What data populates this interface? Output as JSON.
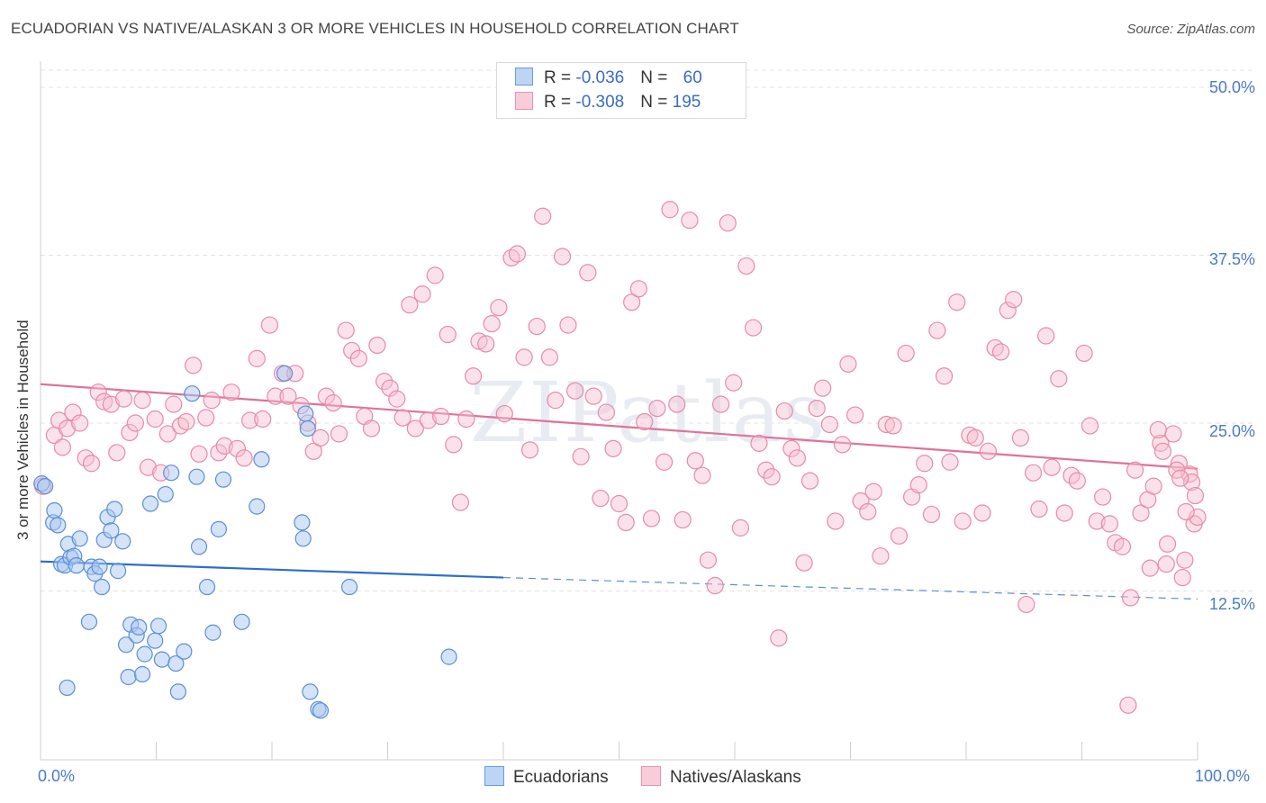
{
  "title": "ECUADORIAN VS NATIVE/ALASKAN 3 OR MORE VEHICLES IN HOUSEHOLD CORRELATION CHART",
  "source": "Source: ZipAtlas.com",
  "watermark": "ZIPatlas",
  "legend": {
    "rows": [
      {
        "r_label": "R = ",
        "r_value": "-0.036",
        "n_label": "N = ",
        "n_value": "60"
      },
      {
        "r_label": "R = ",
        "r_value": "-0.308",
        "n_label": "N = ",
        "n_value": "195"
      }
    ]
  },
  "colors": {
    "blue_fill": "#a9c8f0",
    "blue_stroke": "#5b8fd6",
    "blue_line": "#2a6fcf",
    "pink_fill": "#f7bfd0",
    "pink_stroke": "#e88aa8",
    "pink_line": "#e0719a"
  },
  "chart_data": {
    "type": "scatter",
    "title": "ECUADORIAN VS NATIVE/ALASKAN 3 OR MORE VEHICLES IN HOUSEHOLD CORRELATION CHART",
    "xlabel": "",
    "ylabel": "3 or more Vehicles in Household",
    "xlim": [
      0,
      100
    ],
    "ylim": [
      0,
      52.5
    ],
    "x_tick_labels": [
      "0.0%",
      "100.0%"
    ],
    "y_ticks": [
      12.5,
      25.0,
      37.5,
      50.0
    ],
    "y_tick_labels": [
      "12.5%",
      "25.0%",
      "37.5%",
      "50.0%"
    ],
    "series": [
      {
        "name": "Ecuadorians",
        "r": -0.036,
        "n": 60,
        "trend": {
          "x0": 0,
          "y0": 14.7,
          "x1": 40,
          "y1": 13.5,
          "dashed_to_x": 100,
          "dashed_to_y": 11.9
        },
        "points": [
          [
            0.1,
            20.5
          ],
          [
            0.4,
            20.3
          ],
          [
            1.1,
            17.6
          ],
          [
            1.2,
            18.5
          ],
          [
            1.5,
            17.4
          ],
          [
            1.8,
            14.5
          ],
          [
            2.1,
            14.4
          ],
          [
            2.3,
            5.3
          ],
          [
            2.4,
            16.0
          ],
          [
            2.6,
            15.0
          ],
          [
            2.9,
            15.1
          ],
          [
            3.1,
            14.4
          ],
          [
            3.4,
            16.4
          ],
          [
            4.2,
            10.2
          ],
          [
            4.4,
            14.3
          ],
          [
            4.7,
            13.8
          ],
          [
            5.1,
            14.3
          ],
          [
            5.3,
            12.8
          ],
          [
            5.5,
            16.3
          ],
          [
            5.8,
            18.0
          ],
          [
            6.1,
            17.0
          ],
          [
            6.4,
            18.6
          ],
          [
            6.7,
            14.0
          ],
          [
            7.1,
            16.2
          ],
          [
            7.4,
            8.5
          ],
          [
            7.6,
            6.1
          ],
          [
            7.8,
            10.0
          ],
          [
            8.3,
            9.2
          ],
          [
            8.5,
            9.8
          ],
          [
            8.8,
            6.3
          ],
          [
            9.0,
            7.8
          ],
          [
            9.5,
            19.0
          ],
          [
            9.9,
            8.8
          ],
          [
            10.2,
            9.9
          ],
          [
            10.5,
            7.4
          ],
          [
            10.8,
            19.7
          ],
          [
            11.3,
            21.3
          ],
          [
            11.7,
            7.1
          ],
          [
            11.9,
            5.0
          ],
          [
            12.4,
            8.0
          ],
          [
            13.1,
            27.2
          ],
          [
            13.5,
            21.0
          ],
          [
            13.7,
            15.8
          ],
          [
            14.4,
            12.8
          ],
          [
            14.9,
            9.4
          ],
          [
            15.4,
            17.1
          ],
          [
            15.8,
            20.8
          ],
          [
            17.4,
            10.2
          ],
          [
            18.7,
            18.8
          ],
          [
            19.1,
            22.3
          ],
          [
            21.1,
            28.7
          ],
          [
            22.6,
            17.6
          ],
          [
            22.7,
            16.4
          ],
          [
            22.9,
            25.7
          ],
          [
            23.1,
            24.6
          ],
          [
            23.3,
            5.0
          ],
          [
            24.0,
            3.7
          ],
          [
            24.2,
            3.6
          ],
          [
            26.7,
            12.8
          ],
          [
            35.3,
            7.6
          ]
        ]
      },
      {
        "name": "Natives/Alaskans",
        "r": -0.308,
        "n": 195,
        "trend": {
          "x0": 0,
          "y0": 27.9,
          "x1": 100,
          "y1": 21.6
        },
        "points": [
          [
            0.2,
            20.3
          ],
          [
            1.2,
            24.1
          ],
          [
            1.6,
            25.2
          ],
          [
            1.9,
            23.2
          ],
          [
            2.3,
            24.6
          ],
          [
            2.8,
            25.8
          ],
          [
            3.4,
            25.0
          ],
          [
            3.9,
            22.4
          ],
          [
            4.4,
            22.0
          ],
          [
            5.0,
            27.3
          ],
          [
            5.5,
            26.6
          ],
          [
            6.1,
            26.4
          ],
          [
            6.6,
            22.8
          ],
          [
            7.2,
            26.8
          ],
          [
            7.7,
            24.3
          ],
          [
            8.2,
            25.0
          ],
          [
            8.8,
            26.7
          ],
          [
            9.3,
            21.7
          ],
          [
            9.9,
            25.3
          ],
          [
            10.4,
            21.3
          ],
          [
            11.0,
            24.2
          ],
          [
            11.5,
            26.4
          ],
          [
            12.1,
            24.8
          ],
          [
            12.6,
            25.1
          ],
          [
            13.2,
            29.3
          ],
          [
            13.7,
            22.7
          ],
          [
            14.3,
            25.4
          ],
          [
            14.8,
            26.7
          ],
          [
            15.4,
            22.8
          ],
          [
            15.9,
            23.3
          ],
          [
            16.5,
            27.3
          ],
          [
            17.0,
            23.1
          ],
          [
            17.6,
            22.4
          ],
          [
            18.1,
            25.2
          ],
          [
            18.7,
            29.8
          ],
          [
            19.2,
            25.3
          ],
          [
            19.8,
            32.3
          ],
          [
            20.3,
            27.0
          ],
          [
            20.9,
            28.7
          ],
          [
            21.4,
            27.0
          ],
          [
            22.0,
            28.7
          ],
          [
            22.5,
            26.3
          ],
          [
            23.1,
            25.0
          ],
          [
            23.6,
            22.9
          ],
          [
            24.2,
            23.9
          ],
          [
            24.7,
            27.0
          ],
          [
            25.3,
            26.5
          ],
          [
            25.8,
            24.2
          ],
          [
            26.4,
            31.9
          ],
          [
            26.9,
            30.4
          ],
          [
            27.5,
            29.8
          ],
          [
            28.0,
            25.5
          ],
          [
            28.6,
            24.6
          ],
          [
            29.1,
            30.8
          ],
          [
            29.7,
            28.1
          ],
          [
            30.2,
            27.6
          ],
          [
            30.8,
            26.8
          ],
          [
            31.3,
            25.4
          ],
          [
            31.9,
            33.8
          ],
          [
            32.4,
            24.6
          ],
          [
            33.0,
            34.6
          ],
          [
            33.5,
            25.2
          ],
          [
            34.1,
            36.0
          ],
          [
            34.6,
            25.5
          ],
          [
            35.2,
            31.6
          ],
          [
            35.7,
            23.4
          ],
          [
            36.3,
            19.1
          ],
          [
            36.8,
            25.3
          ],
          [
            37.4,
            28.5
          ],
          [
            37.9,
            31.1
          ],
          [
            38.5,
            30.9
          ],
          [
            39.0,
            32.4
          ],
          [
            39.6,
            33.6
          ],
          [
            40.1,
            25.7
          ],
          [
            40.7,
            37.3
          ],
          [
            41.2,
            37.6
          ],
          [
            41.8,
            29.9
          ],
          [
            42.3,
            23.0
          ],
          [
            42.9,
            32.2
          ],
          [
            43.4,
            40.4
          ],
          [
            44.0,
            29.9
          ],
          [
            44.5,
            26.7
          ],
          [
            45.1,
            37.4
          ],
          [
            45.6,
            32.3
          ],
          [
            46.2,
            27.4
          ],
          [
            46.7,
            22.5
          ],
          [
            47.3,
            36.2
          ],
          [
            47.8,
            27.0
          ],
          [
            48.4,
            19.4
          ],
          [
            48.9,
            25.8
          ],
          [
            49.5,
            23.1
          ],
          [
            50.0,
            19.0
          ],
          [
            50.6,
            17.6
          ],
          [
            51.1,
            34.0
          ],
          [
            51.7,
            35.0
          ],
          [
            52.2,
            25.1
          ],
          [
            52.8,
            17.9
          ],
          [
            53.3,
            26.1
          ],
          [
            53.9,
            22.1
          ],
          [
            54.4,
            40.9
          ],
          [
            55.0,
            26.4
          ],
          [
            55.5,
            17.8
          ],
          [
            56.1,
            40.1
          ],
          [
            56.6,
            22.2
          ],
          [
            57.2,
            21.1
          ],
          [
            57.7,
            14.8
          ],
          [
            58.3,
            12.9
          ],
          [
            58.8,
            26.4
          ],
          [
            59.4,
            39.9
          ],
          [
            59.9,
            28.0
          ],
          [
            60.5,
            17.2
          ],
          [
            61.0,
            36.7
          ],
          [
            61.6,
            32.1
          ],
          [
            62.1,
            23.5
          ],
          [
            62.7,
            21.5
          ],
          [
            63.2,
            21.0
          ],
          [
            63.8,
            9.0
          ],
          [
            64.3,
            25.9
          ],
          [
            64.9,
            23.1
          ],
          [
            65.4,
            22.4
          ],
          [
            66.0,
            14.6
          ],
          [
            66.5,
            20.7
          ],
          [
            67.1,
            26.1
          ],
          [
            67.6,
            27.6
          ],
          [
            68.2,
            24.9
          ],
          [
            68.7,
            17.7
          ],
          [
            69.3,
            23.4
          ],
          [
            69.8,
            29.4
          ],
          [
            70.4,
            25.6
          ],
          [
            70.9,
            19.2
          ],
          [
            71.5,
            18.4
          ],
          [
            72.0,
            19.9
          ],
          [
            72.6,
            15.1
          ],
          [
            73.1,
            24.9
          ],
          [
            73.7,
            24.8
          ],
          [
            74.2,
            16.6
          ],
          [
            74.8,
            30.2
          ],
          [
            75.3,
            19.5
          ],
          [
            75.9,
            20.4
          ],
          [
            76.4,
            22.0
          ],
          [
            77.0,
            18.2
          ],
          [
            77.5,
            31.9
          ],
          [
            78.1,
            28.5
          ],
          [
            78.6,
            22.1
          ],
          [
            79.2,
            34.0
          ],
          [
            79.7,
            17.7
          ],
          [
            80.3,
            24.1
          ],
          [
            80.8,
            23.9
          ],
          [
            81.4,
            18.3
          ],
          [
            81.9,
            22.9
          ],
          [
            82.5,
            30.6
          ],
          [
            83.0,
            30.3
          ],
          [
            83.6,
            33.4
          ],
          [
            84.1,
            34.2
          ],
          [
            84.7,
            23.9
          ],
          [
            85.2,
            11.5
          ],
          [
            85.8,
            21.3
          ],
          [
            86.3,
            18.6
          ],
          [
            86.9,
            31.5
          ],
          [
            87.4,
            21.7
          ],
          [
            88.0,
            28.3
          ],
          [
            88.5,
            18.3
          ],
          [
            89.1,
            21.1
          ],
          [
            89.6,
            20.7
          ],
          [
            90.2,
            30.2
          ],
          [
            90.7,
            24.8
          ],
          [
            91.3,
            17.7
          ],
          [
            91.8,
            19.5
          ],
          [
            92.4,
            17.5
          ],
          [
            92.9,
            16.1
          ],
          [
            93.5,
            15.8
          ],
          [
            94.0,
            4.0
          ],
          [
            94.6,
            21.5
          ],
          [
            95.1,
            18.3
          ],
          [
            95.7,
            19.3
          ],
          [
            96.2,
            20.3
          ],
          [
            96.8,
            23.5
          ],
          [
            97.3,
            14.5
          ],
          [
            97.9,
            24.2
          ],
          [
            98.4,
            22.0
          ],
          [
            98.9,
            14.8
          ],
          [
            99.3,
            21.2
          ],
          [
            99.7,
            17.5
          ],
          [
            100.0,
            18.0
          ],
          [
            99.5,
            20.6
          ],
          [
            98.7,
            13.5
          ],
          [
            97.4,
            16.0
          ],
          [
            95.9,
            14.2
          ],
          [
            94.2,
            12.0
          ],
          [
            96.6,
            24.5
          ],
          [
            98.2,
            21.5
          ],
          [
            99.0,
            18.4
          ],
          [
            99.8,
            19.6
          ],
          [
            97.0,
            22.9
          ],
          [
            98.5,
            20.9
          ]
        ]
      }
    ]
  },
  "bottom_legend": [
    {
      "label": "Ecuadorians"
    },
    {
      "label": "Natives/Alaskans"
    }
  ]
}
